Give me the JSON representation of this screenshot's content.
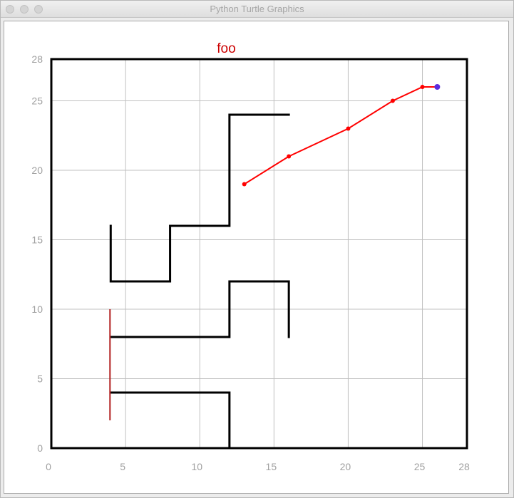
{
  "window": {
    "title": "Python Turtle Graphics",
    "buttons": [
      "close",
      "minimize",
      "zoom"
    ]
  },
  "chart_data": {
    "type": "line",
    "title": "foo",
    "title_color": "#cc0000",
    "xlim": [
      0,
      28
    ],
    "ylim": [
      0,
      28
    ],
    "x_ticks": [
      0,
      5,
      10,
      15,
      20,
      25,
      28
    ],
    "y_ticks": [
      0,
      5,
      10,
      15,
      20,
      25,
      28
    ],
    "grid": true,
    "walls_color": "#000000",
    "walls": [
      [
        [
          4,
          16
        ],
        [
          4,
          12
        ],
        [
          8,
          12
        ],
        [
          8,
          16
        ],
        [
          12,
          16
        ],
        [
          12,
          24
        ],
        [
          16,
          24
        ]
      ],
      [
        [
          4,
          8
        ],
        [
          12,
          8
        ],
        [
          12,
          12
        ],
        [
          16,
          12
        ],
        [
          16,
          8
        ]
      ],
      [
        [
          4,
          4
        ],
        [
          12,
          4
        ],
        [
          12,
          0
        ]
      ]
    ],
    "marker_line": {
      "color": "#b22222",
      "points": [
        [
          4,
          2
        ],
        [
          4,
          10
        ]
      ]
    },
    "path": {
      "color": "#ff0000",
      "points": [
        [
          13,
          19
        ],
        [
          16,
          21
        ],
        [
          20,
          23
        ],
        [
          23,
          25
        ],
        [
          25,
          26
        ],
        [
          26,
          26
        ]
      ]
    },
    "current_position": {
      "color": "#5a2ee0",
      "point": [
        26,
        26
      ]
    }
  }
}
